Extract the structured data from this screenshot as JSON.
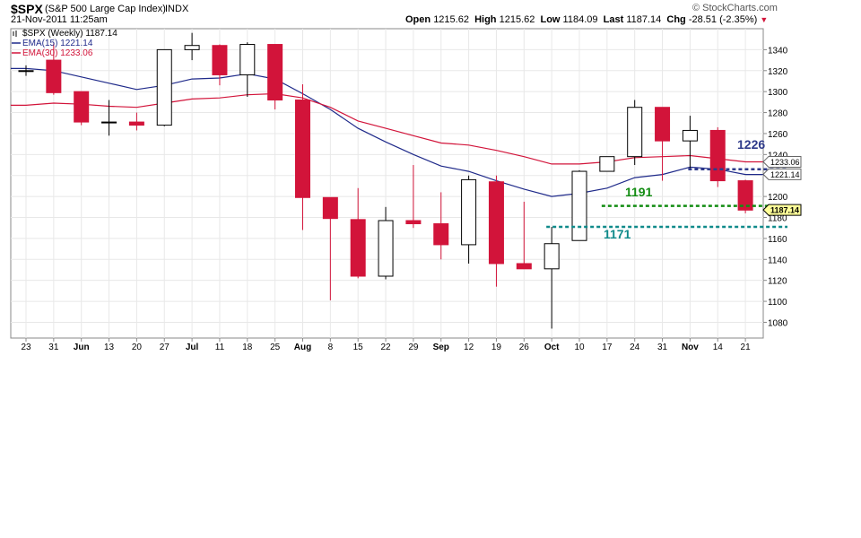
{
  "header": {
    "symbol": "$SPX",
    "name": "(S&P 500 Large Cap Index)",
    "exchange": "INDX",
    "credit": "© StockCharts.com",
    "date": "21-Nov-2011 11:25am",
    "open_label": "Open",
    "open": "1215.62",
    "high_label": "High",
    "high": "1215.62",
    "low_label": "Low",
    "low": "1184.09",
    "last_label": "Last",
    "last": "1187.14",
    "chg_label": "Chg",
    "chg": "-28.51 (-2.35%)"
  },
  "legend": [
    {
      "text": "$SPX (Weekly) 1187.14",
      "color": "#000000"
    },
    {
      "text": "EMA(15) 1221.14",
      "color": "#1f2a8a"
    },
    {
      "text": "EMA(30) 1233.06",
      "color": "#d2143a"
    }
  ],
  "colors": {
    "up": "#ffffff",
    "down": "#d2143a",
    "ema15": "#1f2a8a",
    "ema30": "#d2143a",
    "level1191": "#128c12",
    "level1171": "#0f8a8a",
    "level1226": "#2e3a8a"
  },
  "chart_data": {
    "type": "candlestick",
    "title": "$SPX (Weekly)",
    "ylim": [
      1065,
      1360
    ],
    "y_ticks": [
      1080,
      1100,
      1120,
      1140,
      1160,
      1180,
      1200,
      1220,
      1240,
      1260,
      1280,
      1300,
      1320,
      1340
    ],
    "x_ticks": [
      "23",
      "31",
      "Jun",
      "13",
      "20",
      "27",
      "Jul",
      "11",
      "18",
      "25",
      "Aug",
      "8",
      "15",
      "22",
      "29",
      "Sep",
      "12",
      "19",
      "26",
      "Oct",
      "10",
      "17",
      "24",
      "31",
      "Nov",
      "14",
      "21"
    ],
    "month_ticks": [
      "Jun",
      "Jul",
      "Aug",
      "Sep",
      "Oct",
      "Nov"
    ],
    "candles": [
      {
        "x": "23",
        "o": 1320,
        "h": 1325,
        "l": 1315,
        "c": 1320
      },
      {
        "x": "31",
        "o": 1330,
        "h": 1346,
        "l": 1297,
        "c": 1299
      },
      {
        "x": "Jun",
        "o": 1300,
        "h": 1300,
        "l": 1268,
        "c": 1271
      },
      {
        "x": "13",
        "o": 1271,
        "h": 1292,
        "l": 1258,
        "c": 1271
      },
      {
        "x": "20",
        "o": 1271,
        "h": 1280,
        "l": 1263,
        "c": 1268
      },
      {
        "x": "27",
        "o": 1268,
        "h": 1340,
        "l": 1267,
        "c": 1340
      },
      {
        "x": "Jul",
        "o": 1340,
        "h": 1356,
        "l": 1330,
        "c": 1344
      },
      {
        "x": "11",
        "o": 1344,
        "h": 1345,
        "l": 1306,
        "c": 1316
      },
      {
        "x": "18",
        "o": 1316,
        "h": 1347,
        "l": 1295,
        "c": 1345
      },
      {
        "x": "25",
        "o": 1345,
        "h": 1345,
        "l": 1283,
        "c": 1292
      },
      {
        "x": "Aug",
        "o": 1292,
        "h": 1307,
        "l": 1168,
        "c": 1199
      },
      {
        "x": "8",
        "o": 1199,
        "h": 1199,
        "l": 1101,
        "c": 1179
      },
      {
        "x": "15",
        "o": 1178,
        "h": 1208,
        "l": 1122,
        "c": 1124
      },
      {
        "x": "22",
        "o": 1124,
        "h": 1190,
        "l": 1121,
        "c": 1177
      },
      {
        "x": "29",
        "o": 1177,
        "h": 1230,
        "l": 1170,
        "c": 1174
      },
      {
        "x": "Sep",
        "o": 1174,
        "h": 1204,
        "l": 1140,
        "c": 1154
      },
      {
        "x": "12",
        "o": 1154,
        "h": 1220,
        "l": 1136,
        "c": 1216
      },
      {
        "x": "19",
        "o": 1214,
        "h": 1220,
        "l": 1114,
        "c": 1136
      },
      {
        "x": "26",
        "o": 1136,
        "h": 1195,
        "l": 1131,
        "c": 1131
      },
      {
        "x": "Oct",
        "o": 1131,
        "h": 1171,
        "l": 1074,
        "c": 1155
      },
      {
        "x": "10",
        "o": 1158,
        "h": 1225,
        "l": 1158,
        "c": 1224
      },
      {
        "x": "17",
        "o": 1224,
        "h": 1238,
        "l": 1224,
        "c": 1238
      },
      {
        "x": "24",
        "o": 1238,
        "h": 1292,
        "l": 1230,
        "c": 1285
      },
      {
        "x": "31",
        "o": 1285,
        "h": 1285,
        "l": 1215,
        "c": 1253
      },
      {
        "x": "Nov",
        "o": 1253,
        "h": 1277,
        "l": 1226,
        "c": 1263
      },
      {
        "x": "14",
        "o": 1263,
        "h": 1266,
        "l": 1209,
        "c": 1215
      },
      {
        "x": "21",
        "o": 1215,
        "h": 1216,
        "l": 1184,
        "c": 1187
      }
    ],
    "series": [
      {
        "name": "EMA(15)",
        "values": [
          1322,
          1320,
          1314,
          1308,
          1302,
          1306,
          1312,
          1313,
          1317,
          1312,
          1298,
          1283,
          1265,
          1252,
          1240,
          1229,
          1224,
          1215,
          1207,
          1200,
          1203,
          1208,
          1218,
          1221,
          1228,
          1226,
          1221
        ]
      },
      {
        "name": "EMA(30)",
        "values": [
          1287,
          1289,
          1288,
          1286,
          1285,
          1289,
          1293,
          1294,
          1297,
          1298,
          1294,
          1285,
          1272,
          1265,
          1258,
          1251,
          1249,
          1244,
          1238,
          1231,
          1231,
          1233,
          1237,
          1238,
          1239,
          1236,
          1233
        ]
      }
    ],
    "last_value_tags": [
      {
        "text": "1233.06",
        "value": 1233.06
      },
      {
        "text": "1221.14",
        "value": 1221.14
      },
      {
        "text": "1187.14",
        "value": 1187.14
      }
    ],
    "level_lines": [
      {
        "value": 1226,
        "label": "1226",
        "from": "Nov",
        "color_key": "level1226"
      },
      {
        "value": 1191,
        "label": "1191",
        "from": "17",
        "color_key": "level1191"
      },
      {
        "value": 1171,
        "label": "1171",
        "from": "Oct",
        "color_key": "level1171"
      }
    ]
  }
}
